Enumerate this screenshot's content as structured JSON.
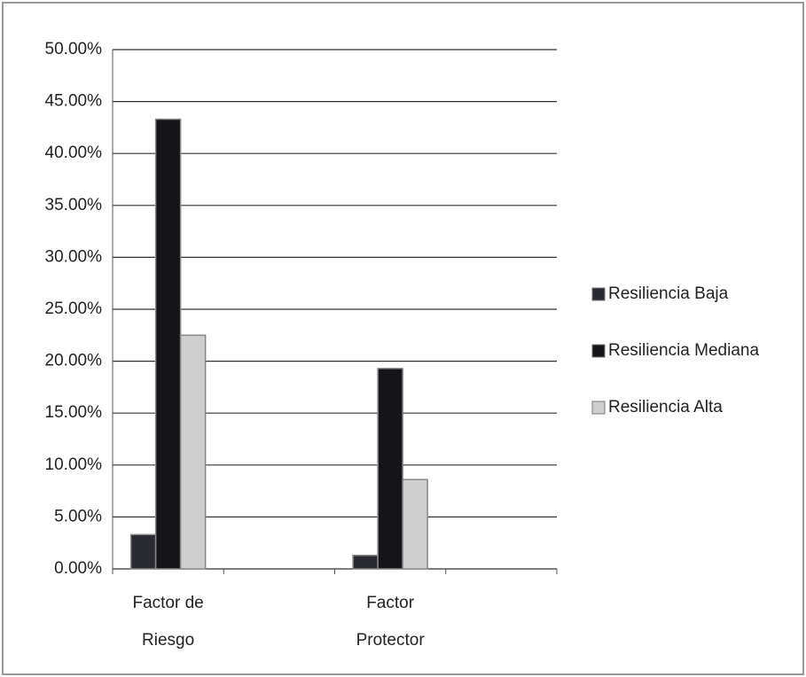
{
  "chart_data": {
    "type": "bar",
    "categories": [
      "Factor de Riesgo",
      "Factor Protector"
    ],
    "series": [
      {
        "name": "Resiliencia Baja",
        "color": "#2a2a33",
        "values": [
          3.3,
          1.3
        ]
      },
      {
        "name": "Resiliencia Mediana",
        "color": "#151519",
        "values": [
          43.3,
          19.3
        ]
      },
      {
        "name": "Resiliencia Alta",
        "color": "#cfcfcf",
        "values": [
          22.5,
          8.6
        ]
      }
    ],
    "ylim": [
      0,
      50
    ],
    "yticks": [
      {
        "value": 0,
        "label": "0.00%"
      },
      {
        "value": 5,
        "label": "5.00%"
      },
      {
        "value": 10,
        "label": "10.00%"
      },
      {
        "value": 15,
        "label": "15.00%"
      },
      {
        "value": 20,
        "label": "20.00%"
      },
      {
        "value": 25,
        "label": "25.00%"
      },
      {
        "value": 30,
        "label": "30.00%"
      },
      {
        "value": 35,
        "label": "35.00%"
      },
      {
        "value": 40,
        "label": "40.00%"
      },
      {
        "value": 45,
        "label": "45.00%"
      },
      {
        "value": 50,
        "label": "50.00%"
      }
    ],
    "grid": true,
    "legend": "right"
  }
}
